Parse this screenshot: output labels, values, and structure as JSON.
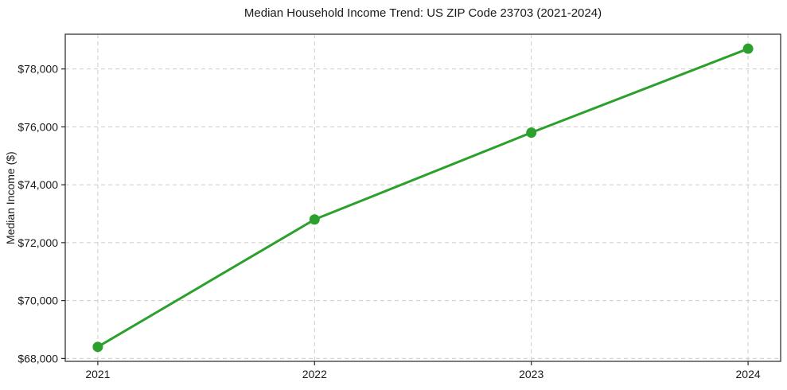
{
  "chart_data": {
    "type": "line",
    "title": "Median Household Income Trend: US ZIP Code 23703 (2021-2024)",
    "xlabel": "",
    "ylabel": "Median Income ($)",
    "categories": [
      "2021",
      "2022",
      "2023",
      "2024"
    ],
    "series": [
      {
        "name": "median-household-income",
        "values": [
          68400,
          72800,
          75800,
          78700
        ],
        "color": "#2ca02c",
        "marker": "circle",
        "line_width": 3,
        "marker_radius": 6.5
      }
    ],
    "yticks": {
      "values": [
        68000,
        70000,
        72000,
        74000,
        76000,
        78000
      ],
      "labels": [
        "$68,000",
        "$70,000",
        "$72,000",
        "$74,000",
        "$76,000",
        "$78,000"
      ]
    },
    "ylim": [
      67900,
      79200
    ],
    "grid": true,
    "grid_style": "dashed",
    "grid_color": "#cccccc",
    "spine_color": "#262626",
    "background_color": "#ffffff",
    "legend": "none"
  }
}
